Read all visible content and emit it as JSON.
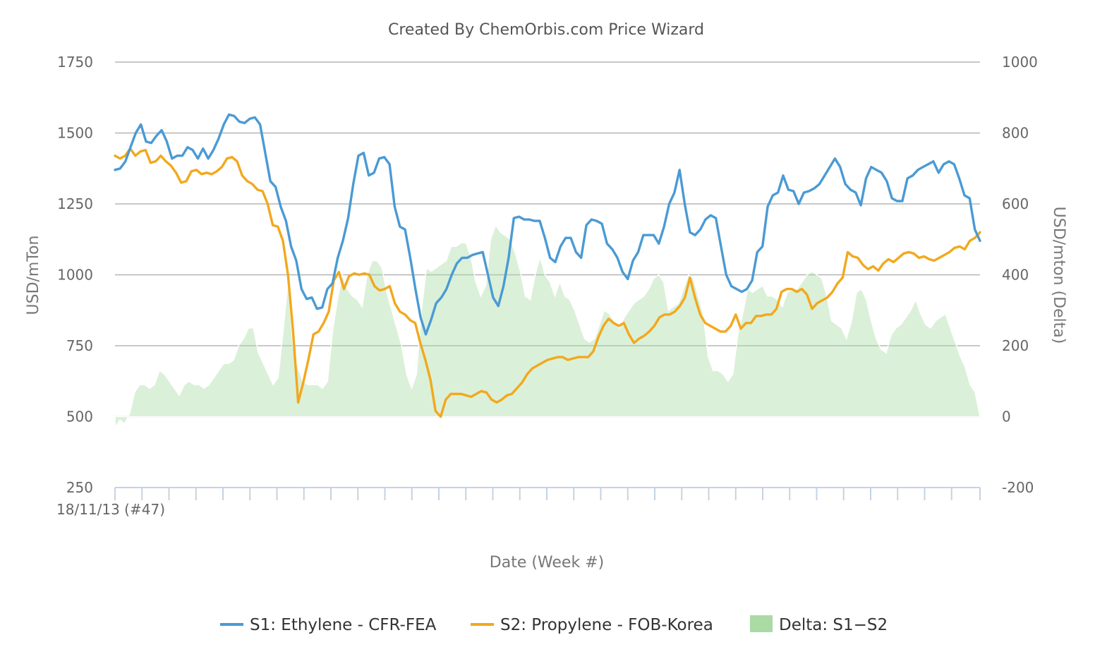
{
  "chart_data": {
    "type": "line",
    "title": "Created By ChemOrbis.com Price Wizard",
    "xlabel": "Date (Week #)",
    "ylabel": "USD/mTon",
    "y2label": "USD/mton (Delta)",
    "x_start_label": "18/11/13 (#47)",
    "x_tick_count": 33,
    "ylim": [
      250,
      1750
    ],
    "y_ticks": [
      250,
      500,
      750,
      1000,
      1250,
      1500,
      1750
    ],
    "y2lim": [
      -200,
      1000
    ],
    "y2_ticks": [
      -200,
      0,
      200,
      400,
      600,
      800,
      1000
    ],
    "grid": true,
    "legend": "bottom-center",
    "series": [
      {
        "name": "S1: Ethylene - CFR-FEA",
        "axis": "left",
        "kind": "line",
        "color": "#4a9ad4",
        "values": [
          1370,
          1375,
          1400,
          1450,
          1500,
          1530,
          1470,
          1465,
          1490,
          1510,
          1470,
          1410,
          1420,
          1420,
          1450,
          1440,
          1410,
          1445,
          1410,
          1440,
          1480,
          1530,
          1565,
          1560,
          1540,
          1535,
          1550,
          1555,
          1530,
          1430,
          1330,
          1310,
          1240,
          1190,
          1100,
          1050,
          950,
          915,
          920,
          880,
          885,
          950,
          970,
          1060,
          1120,
          1200,
          1320,
          1420,
          1430,
          1350,
          1360,
          1410,
          1415,
          1390,
          1240,
          1170,
          1160,
          1060,
          950,
          850,
          790,
          840,
          900,
          920,
          950,
          1000,
          1040,
          1060,
          1060,
          1070,
          1075,
          1080,
          1000,
          920,
          890,
          960,
          1060,
          1200,
          1205,
          1195,
          1195,
          1190,
          1190,
          1130,
          1060,
          1045,
          1100,
          1130,
          1130,
          1080,
          1060,
          1175,
          1195,
          1190,
          1180,
          1110,
          1090,
          1060,
          1010,
          985,
          1050,
          1080,
          1140,
          1140,
          1140,
          1110,
          1170,
          1250,
          1290,
          1370,
          1250,
          1150,
          1140,
          1160,
          1195,
          1210,
          1200,
          1100,
          1000,
          960,
          950,
          940,
          950,
          980,
          1080,
          1100,
          1240,
          1280,
          1290,
          1350,
          1300,
          1295,
          1250,
          1290,
          1295,
          1305,
          1320,
          1350,
          1380,
          1410,
          1380,
          1320,
          1300,
          1290,
          1245,
          1340,
          1380,
          1370,
          1360,
          1330,
          1270,
          1260,
          1260,
          1340,
          1350,
          1370,
          1380,
          1390,
          1400,
          1360,
          1390,
          1400,
          1390,
          1340,
          1280,
          1270,
          1160,
          1120
        ]
      },
      {
        "name": "S2: Propylene - FOB-Korea",
        "axis": "left",
        "kind": "line",
        "color": "#f2a81d",
        "values": [
          1420,
          1410,
          1420,
          1445,
          1420,
          1435,
          1440,
          1395,
          1400,
          1420,
          1400,
          1385,
          1360,
          1325,
          1330,
          1365,
          1370,
          1355,
          1360,
          1355,
          1365,
          1380,
          1410,
          1415,
          1400,
          1350,
          1330,
          1320,
          1300,
          1295,
          1250,
          1175,
          1170,
          1120,
          1000,
          800,
          550,
          620,
          700,
          790,
          800,
          830,
          870,
          980,
          1010,
          950,
          995,
          1005,
          1000,
          1005,
          1000,
          960,
          945,
          950,
          960,
          900,
          870,
          860,
          840,
          830,
          760,
          700,
          630,
          520,
          500,
          560,
          580,
          580,
          580,
          575,
          570,
          580,
          590,
          585,
          560,
          550,
          560,
          575,
          580,
          600,
          620,
          650,
          670,
          680,
          690,
          700,
          705,
          710,
          710,
          700,
          705,
          710,
          710,
          710,
          730,
          780,
          820,
          845,
          830,
          820,
          830,
          790,
          760,
          775,
          785,
          800,
          820,
          850,
          860,
          860,
          870,
          890,
          920,
          990,
          920,
          860,
          830,
          820,
          810,
          800,
          800,
          820,
          860,
          810,
          830,
          830,
          855,
          855,
          860,
          860,
          880,
          940,
          950,
          950,
          940,
          950,
          930,
          880,
          900,
          910,
          920,
          940,
          970,
          990,
          1080,
          1065,
          1060,
          1035,
          1020,
          1030,
          1015,
          1040,
          1055,
          1045,
          1060,
          1075,
          1080,
          1075,
          1060,
          1065,
          1055,
          1050,
          1060,
          1070,
          1080,
          1095,
          1100,
          1090,
          1120,
          1130,
          1150
        ]
      },
      {
        "name": "Delta: S1−S2",
        "axis": "right",
        "kind": "area",
        "color": "#a9dba3",
        "values": [
          -30,
          -10,
          -20,
          10,
          70,
          90,
          90,
          80,
          90,
          130,
          120,
          100,
          80,
          60,
          90,
          100,
          90,
          90,
          80,
          90,
          110,
          130,
          150,
          150,
          160,
          200,
          220,
          250,
          250,
          180,
          150,
          120,
          90,
          110,
          240,
          380,
          200,
          140,
          100,
          90,
          90,
          90,
          80,
          100,
          240,
          330,
          400,
          360,
          340,
          330,
          310,
          400,
          440,
          440,
          420,
          350,
          300,
          250,
          200,
          120,
          80,
          120,
          300,
          420,
          410,
          420,
          430,
          440,
          480,
          480,
          490,
          490,
          450,
          380,
          340,
          370,
          500,
          540,
          520,
          510,
          500,
          460,
          410,
          340,
          330,
          400,
          450,
          400,
          380,
          340,
          380,
          340,
          330,
          300,
          260,
          220,
          210,
          220,
          260,
          300,
          290,
          270,
          250,
          280,
          300,
          320,
          330,
          340,
          360,
          390,
          400,
          380,
          300,
          310,
          320,
          360,
          400,
          390,
          340,
          290,
          170,
          130,
          130,
          120,
          100,
          120,
          230,
          290,
          360,
          350,
          360,
          370,
          340,
          340,
          330,
          310,
          350,
          360,
          360,
          380,
          400,
          410,
          400,
          390,
          340,
          270,
          260,
          250,
          220,
          270,
          350,
          360,
          330,
          270,
          220,
          190,
          180,
          230,
          250,
          260,
          280,
          300,
          330,
          290,
          260,
          250,
          270,
          280,
          290,
          250,
          210,
          170,
          140,
          90,
          70,
          0
        ]
      }
    ]
  }
}
